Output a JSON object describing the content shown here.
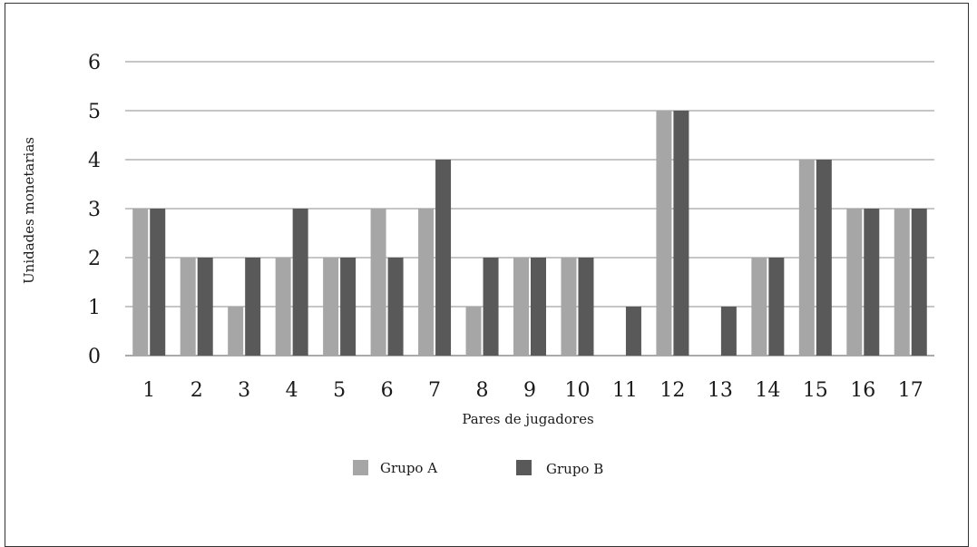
{
  "chart_data": {
    "type": "bar",
    "title": "",
    "xlabel": "Pares de jugadores",
    "ylabel": "Unidades monetarias",
    "ylim": [
      0,
      6
    ],
    "yticks": [
      0,
      1,
      2,
      3,
      4,
      5,
      6
    ],
    "grid": true,
    "legend_position": "bottom",
    "categories": [
      "1",
      "2",
      "3",
      "4",
      "5",
      "6",
      "7",
      "8",
      "9",
      "10",
      "11",
      "12",
      "13",
      "14",
      "15",
      "16",
      "17"
    ],
    "series": [
      {
        "name": "Grupo A",
        "color": "#a6a6a6",
        "values": [
          3,
          2,
          1,
          2,
          2,
          3,
          3,
          1,
          2,
          2,
          0,
          5,
          0,
          2,
          4,
          3,
          3
        ]
      },
      {
        "name": "Grupo B",
        "color": "#595959",
        "values": [
          3,
          2,
          2,
          3,
          2,
          2,
          4,
          2,
          2,
          2,
          1,
          5,
          1,
          2,
          4,
          3,
          3
        ]
      }
    ]
  }
}
